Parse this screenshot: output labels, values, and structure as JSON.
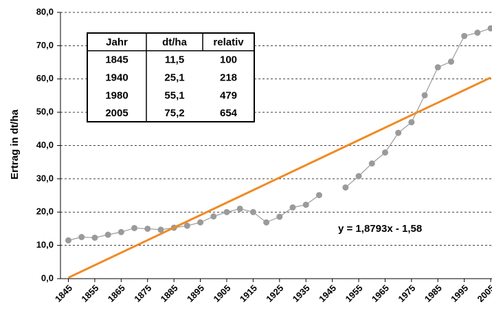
{
  "chart_data": {
    "type": "line",
    "y_label": "Ertrag in dt/ha",
    "annotation": "y = 1,8793x - 1,58",
    "x": [
      1845,
      1850,
      1855,
      1860,
      1865,
      1870,
      1875,
      1880,
      1885,
      1890,
      1895,
      1900,
      1905,
      1910,
      1915,
      1920,
      1925,
      1930,
      1935,
      1940,
      1945,
      1950,
      1955,
      1960,
      1965,
      1970,
      1975,
      1980,
      1985,
      1990,
      1995,
      2000,
      2005
    ],
    "series": [
      {
        "color": "#9a9a9a",
        "values": [
          11.5,
          12.5,
          12.3,
          13.2,
          14.0,
          15.2,
          15.0,
          14.7,
          15.3,
          15.9,
          16.9,
          18.7,
          20.0,
          21.0,
          20.0,
          16.9,
          18.6,
          21.4,
          22.2,
          25.1,
          null,
          27.4,
          30.8,
          34.6,
          37.9,
          43.8,
          47.0,
          55.1,
          63.5,
          65.2,
          72.9,
          73.9,
          75.2
        ]
      },
      {
        "color": "#f08a24",
        "x": [
          1845,
          2005
        ],
        "values": [
          0.3,
          60.4
        ]
      }
    ],
    "xlim": [
      1842,
      2005.5
    ],
    "xticks": [
      1845,
      1855,
      1865,
      1875,
      1885,
      1895,
      1905,
      1915,
      1925,
      1935,
      1945,
      1955,
      1965,
      1975,
      1985,
      1995,
      2005
    ],
    "ylim": [
      0,
      80
    ],
    "yticks": [
      {
        "value": 0,
        "label": "0,0"
      },
      {
        "value": 10,
        "label": "10,0"
      },
      {
        "value": 20,
        "label": "20,0"
      },
      {
        "value": 30,
        "label": "30,0"
      },
      {
        "value": 40,
        "label": "40,0"
      },
      {
        "value": 50,
        "label": "50,0"
      },
      {
        "value": 60,
        "label": "60,0"
      },
      {
        "value": 70,
        "label": "70,0"
      },
      {
        "value": 80,
        "label": "80,0"
      }
    ],
    "grid": true,
    "table": {
      "header": [
        "Jahr",
        "dt/ha",
        "relativ"
      ],
      "rows": [
        [
          "1845",
          "11,5",
          "100"
        ],
        [
          "1940",
          "25,1",
          "218"
        ],
        [
          "1980",
          "55,1",
          "479"
        ],
        [
          "2005",
          "75,2",
          "654"
        ]
      ],
      "value_color": "#f08a24"
    }
  }
}
